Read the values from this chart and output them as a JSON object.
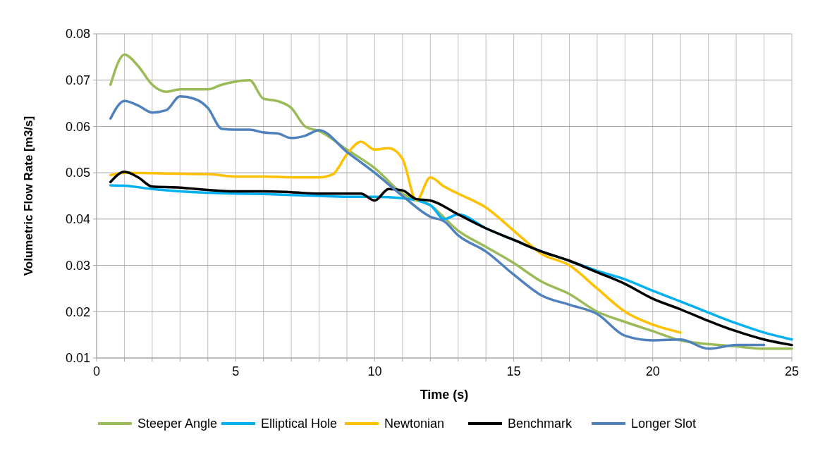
{
  "chart_data": {
    "type": "line",
    "xlabel": "Time (s)",
    "ylabel": "Volumetric Flow Rate [m3/s]",
    "xlim": [
      0,
      25
    ],
    "ylim": [
      0.01,
      0.08
    ],
    "xticks": [
      0,
      {
        "value": 1,
        "label": null
      },
      {
        "value": 2,
        "label": null
      },
      {
        "value": 3,
        "label": null
      },
      {
        "value": 4,
        "label": null
      },
      5,
      {
        "value": 6,
        "label": null
      },
      {
        "value": 7,
        "label": null
      },
      {
        "value": 8,
        "label": null
      },
      {
        "value": 9,
        "label": null
      },
      10,
      {
        "value": 11,
        "label": null
      },
      {
        "value": 12,
        "label": null
      },
      {
        "value": 13,
        "label": null
      },
      {
        "value": 14,
        "label": null
      },
      15,
      {
        "value": 16,
        "label": null
      },
      {
        "value": 17,
        "label": null
      },
      {
        "value": 18,
        "label": null
      },
      {
        "value": 19,
        "label": null
      },
      20,
      {
        "value": 21,
        "label": null
      },
      {
        "value": 22,
        "label": null
      },
      {
        "value": 23,
        "label": null
      },
      {
        "value": 24,
        "label": null
      },
      25
    ],
    "yticks": [
      {
        "value": 0.01,
        "label": "0.01"
      },
      {
        "value": 0.02,
        "label": "0.02"
      },
      {
        "value": 0.03,
        "label": "0.03"
      },
      {
        "value": 0.04,
        "label": "0.04"
      },
      {
        "value": 0.05,
        "label": "0.05"
      },
      {
        "value": 0.06,
        "label": "0.06"
      },
      {
        "value": 0.07,
        "label": "0.07"
      },
      {
        "value": 0.08,
        "label": "0.08"
      }
    ],
    "grid": true,
    "legend": "bottom",
    "marker": "none",
    "line_style": "solid",
    "series": [
      {
        "name": "Steeper Angle",
        "color": "#9bbb59",
        "x": [
          0.5,
          1,
          1.5,
          2,
          2.5,
          3,
          4,
          4.5,
          5,
          5.5,
          6,
          6.5,
          7,
          7.5,
          8,
          9,
          10,
          11,
          12,
          13,
          14,
          15,
          16,
          17,
          18,
          19,
          20,
          21,
          22,
          23,
          24,
          25
        ],
        "values": [
          0.069,
          0.0755,
          0.073,
          0.069,
          0.0675,
          0.068,
          0.068,
          0.069,
          0.0697,
          0.07,
          0.066,
          0.0655,
          0.064,
          0.06,
          0.059,
          0.055,
          0.051,
          0.0455,
          0.043,
          0.0375,
          0.034,
          0.0305,
          0.0265,
          0.0238,
          0.02,
          0.0178,
          0.0158,
          0.0138,
          0.013,
          0.0125,
          0.012,
          0.012
        ]
      },
      {
        "name": "Elliptical Hole",
        "color": "#00b0f0",
        "x": [
          0.5,
          1,
          2,
          3,
          4,
          5,
          6,
          7,
          8,
          9,
          10,
          11,
          12,
          12.5,
          13,
          14,
          15,
          16,
          17,
          18,
          19,
          20,
          21,
          22,
          23,
          24,
          25
        ],
        "values": [
          0.0473,
          0.0472,
          0.0465,
          0.046,
          0.0457,
          0.0455,
          0.0454,
          0.0452,
          0.045,
          0.0448,
          0.0448,
          0.0445,
          0.043,
          0.04,
          0.041,
          0.038,
          0.0355,
          0.033,
          0.031,
          0.0288,
          0.027,
          0.0245,
          0.0222,
          0.0198,
          0.0175,
          0.0155,
          0.014
        ]
      },
      {
        "name": "Newtonian",
        "color": "#ffc000",
        "x": [
          0.5,
          1,
          2,
          3,
          4,
          5,
          6,
          7,
          8,
          8.5,
          9,
          9.5,
          10,
          10.5,
          11,
          11.5,
          12,
          12.5,
          13,
          14,
          15,
          16,
          17,
          18,
          19,
          20,
          21
        ],
        "values": [
          0.0495,
          0.05,
          0.0499,
          0.0498,
          0.0497,
          0.0492,
          0.0492,
          0.049,
          0.049,
          0.0497,
          0.054,
          0.0567,
          0.055,
          0.0553,
          0.053,
          0.044,
          0.049,
          0.047,
          0.0455,
          0.0425,
          0.0375,
          0.0325,
          0.03,
          0.025,
          0.02,
          0.0172,
          0.0155
        ]
      },
      {
        "name": "Benchmark",
        "color": "#000000",
        "x": [
          0.5,
          1,
          1.5,
          2,
          3,
          4,
          5,
          6,
          7,
          8,
          9,
          9.5,
          10,
          10.5,
          11,
          11.5,
          12,
          13,
          14,
          15,
          16,
          17,
          18,
          19,
          20,
          21,
          22,
          23,
          24,
          25
        ],
        "values": [
          0.048,
          0.0502,
          0.049,
          0.047,
          0.0468,
          0.0463,
          0.046,
          0.046,
          0.0458,
          0.0455,
          0.0455,
          0.0455,
          0.044,
          0.0465,
          0.0462,
          0.0443,
          0.044,
          0.041,
          0.038,
          0.0355,
          0.033,
          0.031,
          0.0285,
          0.026,
          0.0228,
          0.0205,
          0.018,
          0.0158,
          0.014,
          0.0128
        ]
      },
      {
        "name": "Longer Slot",
        "color": "#4f81bd",
        "x": [
          0.5,
          1,
          1.5,
          2,
          2.5,
          3,
          3.5,
          4,
          4.5,
          5,
          5.5,
          6,
          6.5,
          7,
          7.5,
          8,
          9,
          10,
          11,
          12,
          12.5,
          13,
          14,
          15,
          16,
          17,
          18,
          19,
          20,
          21,
          22,
          23,
          24
        ],
        "values": [
          0.0617,
          0.0655,
          0.0645,
          0.063,
          0.0635,
          0.0665,
          0.066,
          0.064,
          0.0595,
          0.0593,
          0.0593,
          0.0587,
          0.0585,
          0.0575,
          0.058,
          0.0592,
          0.0545,
          0.05,
          0.045,
          0.0405,
          0.0395,
          0.0365,
          0.033,
          0.028,
          0.0235,
          0.0215,
          0.0195,
          0.0148,
          0.0138,
          0.014,
          0.012,
          0.0128,
          0.0128
        ]
      }
    ]
  }
}
